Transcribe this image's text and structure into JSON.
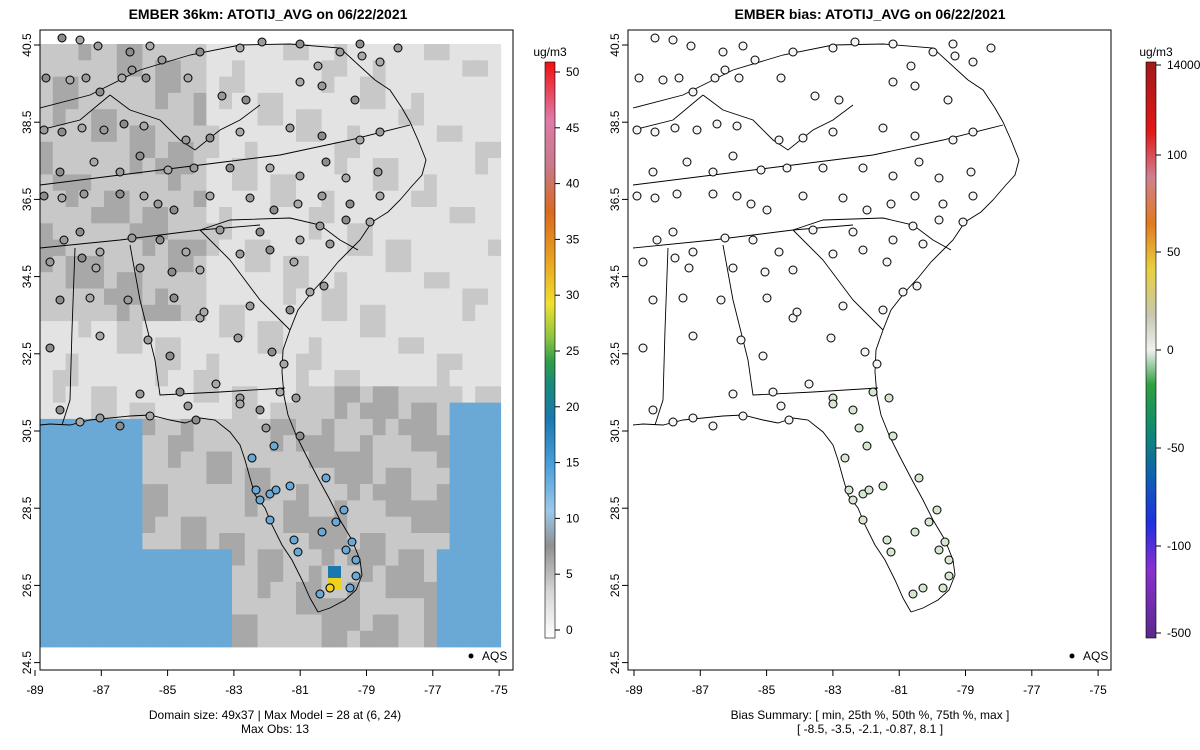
{
  "left": {
    "title": "EMBER 36km: ATOTIJ_AVG on 06/22/2021",
    "colorbar_unit": "ug/m3",
    "colorbar_ticks": [
      "0",
      "5",
      "10",
      "15",
      "20",
      "25",
      "30",
      "35",
      "40",
      "45",
      "50"
    ],
    "footer_line1": "Domain size: 49x37 | Max Model = 28 at (6, 24)",
    "footer_line2": "Max Obs: 13",
    "legend_label": "AQS"
  },
  "right": {
    "title": "EMBER bias: ATOTIJ_AVG on 06/22/2021",
    "colorbar_unit": "ug/m3",
    "colorbar_ticks": [
      "14000",
      "100",
      "50",
      "0",
      "-50",
      "-100",
      "-500"
    ],
    "footer_line1": "Bias Summary: [ min, 25th %, 50th %, 75th %, max ]",
    "footer_line2": "[ -8.5,   -3.5,   -2.1,   -0.87,   8.1 ]",
    "legend_label": "AQS"
  },
  "axes": {
    "x_ticks": [
      "-89",
      "-87",
      "-85",
      "-83",
      "-81",
      "-79",
      "-77",
      "-75"
    ],
    "y_ticks": [
      "40.5",
      "38.5",
      "36.5",
      "34.5",
      "32.5",
      "30.5",
      "28.5",
      "26.5",
      "24.5"
    ],
    "xlim": [
      -89.2,
      -74.8
    ],
    "ylim": [
      24.4,
      40.7
    ]
  },
  "colors": {
    "model_gray_light": "#e3e3e3",
    "model_gray_mid": "#c8c8c8",
    "model_gray_dark": "#a8a8a8",
    "model_blue": "#6aa8d6",
    "model_yellow": "#f0d21e",
    "bias_dot": "#f4f4f4",
    "bias_dot_green": "#d6e6cf"
  }
}
